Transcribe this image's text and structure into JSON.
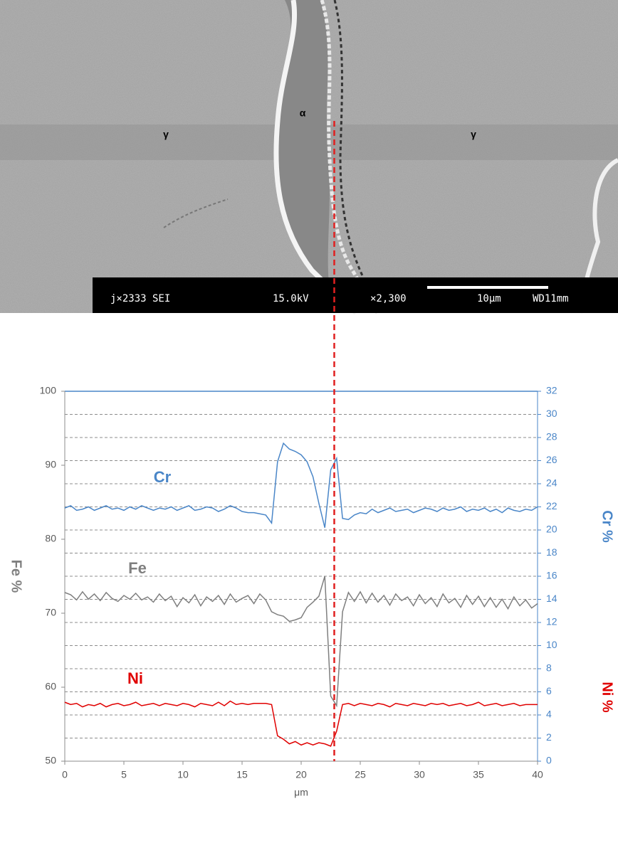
{
  "sem_image": {
    "phase_labels": [
      "γ",
      "α",
      "γ"
    ],
    "info_bar": [
      "j×2333 SEI",
      "15.0kV",
      "×2,300",
      "10μm",
      "WD11mm"
    ]
  },
  "chart_data": {
    "type": "line",
    "xlabel": "μm",
    "ylabel": "Fe %",
    "y2_titles": [
      {
        "text": "Cr %",
        "color": "#4a86c8"
      },
      {
        "text": "Ni %",
        "color": "#e00000"
      }
    ],
    "xlim": [
      0,
      40
    ],
    "xticks": [
      0,
      5,
      10,
      15,
      20,
      25,
      30,
      35,
      40
    ],
    "ylim": [
      50,
      100
    ],
    "yticks": [
      50,
      60,
      70,
      80,
      90,
      100
    ],
    "y2lim": [
      0,
      32
    ],
    "y2ticks": [
      0,
      2,
      4,
      6,
      8,
      10,
      12,
      14,
      16,
      18,
      20,
      22,
      24,
      26,
      28,
      30,
      32
    ],
    "grid": true,
    "marker_x": 22.8,
    "marker_color": "#e02020",
    "x": [
      0,
      0.5,
      1,
      1.5,
      2,
      2.5,
      3,
      3.5,
      4,
      4.5,
      5,
      5.5,
      6,
      6.5,
      7,
      7.5,
      8,
      8.5,
      9,
      9.5,
      10,
      10.5,
      11,
      11.5,
      12,
      12.5,
      13,
      13.5,
      14,
      14.5,
      15,
      15.5,
      16,
      16.5,
      17,
      17.5,
      18,
      18.5,
      19,
      19.5,
      20,
      20.5,
      21,
      21.5,
      22,
      22.5,
      23,
      23.5,
      24,
      24.5,
      25,
      25.5,
      26,
      26.5,
      27,
      27.5,
      28,
      28.5,
      29,
      29.5,
      30,
      30.5,
      31,
      31.5,
      32,
      32.5,
      33,
      33.5,
      34,
      34.5,
      35,
      35.5,
      36,
      36.5,
      37,
      37.5,
      38,
      38.5,
      39,
      39.5,
      40
    ],
    "series": [
      {
        "name": "Cr",
        "color": "#4a86c8",
        "axis": "y2",
        "values": [
          21.9,
          22.1,
          21.7,
          21.8,
          22.0,
          21.7,
          21.9,
          22.1,
          21.8,
          21.9,
          21.7,
          22.0,
          21.8,
          22.1,
          21.9,
          21.7,
          21.9,
          21.8,
          22.0,
          21.7,
          21.9,
          22.1,
          21.7,
          21.8,
          22.0,
          21.9,
          21.6,
          21.8,
          22.1,
          21.9,
          21.6,
          21.5,
          21.5,
          21.4,
          21.3,
          20.6,
          25.9,
          27.5,
          27.0,
          26.8,
          26.5,
          25.9,
          24.6,
          22.3,
          20.2,
          25.2,
          26.2,
          21.0,
          20.9,
          21.3,
          21.5,
          21.4,
          21.8,
          21.5,
          21.7,
          21.9,
          21.6,
          21.7,
          21.8,
          21.5,
          21.7,
          21.9,
          21.8,
          21.6,
          21.9,
          21.7,
          21.8,
          22.0,
          21.6,
          21.8,
          21.7,
          21.9,
          21.6,
          21.8,
          21.5,
          21.9,
          21.7,
          21.6,
          21.8,
          21.7,
          22.0
        ]
      },
      {
        "name": "Fe",
        "color": "#7f7f7f",
        "values": [
          72.8,
          72.5,
          71.8,
          72.9,
          71.9,
          72.6,
          71.7,
          72.8,
          72.0,
          71.6,
          72.4,
          71.9,
          72.7,
          71.8,
          72.2,
          71.5,
          72.6,
          71.7,
          72.3,
          70.9,
          72.1,
          71.4,
          72.5,
          71.0,
          72.2,
          71.6,
          72.4,
          71.2,
          72.6,
          71.5,
          72.0,
          72.4,
          71.3,
          72.6,
          71.8,
          70.2,
          69.8,
          69.6,
          68.9,
          69.1,
          69.4,
          70.8,
          71.5,
          72.3,
          75.0,
          58.8,
          57.5,
          70.2,
          72.8,
          71.6,
          72.9,
          71.4,
          72.7,
          71.5,
          72.4,
          71.1,
          72.6,
          71.7,
          72.2,
          71.0,
          72.5,
          71.3,
          72.1,
          70.9,
          72.6,
          71.4,
          72.0,
          70.8,
          72.4,
          71.2,
          72.3,
          70.9,
          72.1,
          70.8,
          71.9,
          70.6,
          72.2,
          71.0,
          71.8,
          70.7,
          71.3
        ]
      },
      {
        "name": "Ni",
        "color": "#e00000",
        "axis": "y2",
        "values": [
          5.1,
          4.9,
          5.0,
          4.7,
          4.9,
          4.8,
          5.0,
          4.7,
          4.9,
          5.0,
          4.8,
          4.9,
          5.1,
          4.8,
          4.9,
          5.0,
          4.8,
          5.0,
          4.9,
          4.8,
          5.0,
          4.9,
          4.7,
          5.0,
          4.9,
          4.8,
          5.1,
          4.8,
          5.2,
          4.9,
          5.0,
          4.9,
          5.0,
          5.0,
          5.0,
          4.9,
          2.2,
          1.9,
          1.5,
          1.7,
          1.4,
          1.6,
          1.4,
          1.6,
          1.5,
          1.3,
          2.6,
          4.9,
          5.0,
          4.8,
          5.0,
          4.9,
          4.8,
          5.0,
          4.9,
          4.7,
          5.0,
          4.9,
          4.8,
          5.0,
          4.9,
          4.8,
          5.0,
          4.9,
          5.0,
          4.8,
          4.9,
          5.0,
          4.8,
          4.9,
          5.1,
          4.8,
          4.9,
          5.0,
          4.8,
          4.9,
          5.0,
          4.8,
          4.9,
          4.9,
          4.9
        ]
      }
    ]
  }
}
